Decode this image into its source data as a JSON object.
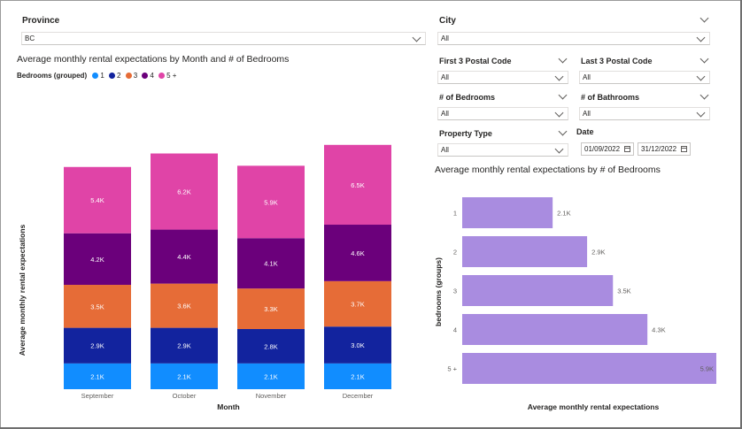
{
  "filters": {
    "province": {
      "label": "Province",
      "value": "BC"
    },
    "city": {
      "label": "City",
      "value": "All"
    },
    "first3": {
      "label": "First 3 Postal Code",
      "value": "All"
    },
    "last3": {
      "label": "Last 3 Postal Code",
      "value": "All"
    },
    "bedrooms": {
      "label": "# of Bedrooms",
      "value": "All"
    },
    "bathrooms": {
      "label": "# of Bathrooms",
      "value": "All"
    },
    "ptype": {
      "label": "Property Type",
      "value": "All"
    },
    "date": {
      "label": "Date",
      "start": "01/09/2022",
      "end": "31/12/2022"
    }
  },
  "colors": {
    "b1": "#118DFF",
    "b2": "#12239E",
    "b3": "#E66C37",
    "b4": "#6B007B",
    "b5": "#E044A7",
    "hbar": "#A98CE0"
  },
  "legend": {
    "title": "Bedrooms (grouped)",
    "items": [
      {
        "label": "1",
        "color": "#118DFF"
      },
      {
        "label": "2",
        "color": "#12239E"
      },
      {
        "label": "3",
        "color": "#E66C37"
      },
      {
        "label": "4",
        "color": "#6B007B"
      },
      {
        "label": "5 +",
        "color": "#E044A7"
      }
    ]
  },
  "chart_data": [
    {
      "type": "bar",
      "stacked": true,
      "title": "Average monthly rental expectations by Month and # of Bedrooms",
      "xlabel": "Month",
      "ylabel": "Average monthly rental expectations",
      "categories": [
        "September",
        "October",
        "November",
        "December"
      ],
      "ylim": [
        0,
        22000
      ],
      "series": [
        {
          "name": "1",
          "values": [
            2100,
            2100,
            2100,
            2100
          ],
          "labels": [
            "2.1K",
            "2.1K",
            "2.1K",
            "2.1K"
          ]
        },
        {
          "name": "2",
          "values": [
            2900,
            2900,
            2800,
            3000
          ],
          "labels": [
            "2.9K",
            "2.9K",
            "2.8K",
            "3.0K"
          ]
        },
        {
          "name": "3",
          "values": [
            3500,
            3600,
            3300,
            3700
          ],
          "labels": [
            "3.5K",
            "3.6K",
            "3.3K",
            "3.7K"
          ]
        },
        {
          "name": "4",
          "values": [
            4200,
            4400,
            4100,
            4600
          ],
          "labels": [
            "4.2K",
            "4.4K",
            "4.1K",
            "4.6K"
          ]
        },
        {
          "name": "5 +",
          "values": [
            5400,
            6200,
            5900,
            6500
          ],
          "labels": [
            "5.4K",
            "6.2K",
            "5.9K",
            "6.5K"
          ]
        }
      ]
    },
    {
      "type": "bar",
      "orientation": "horizontal",
      "title": "Average monthly rental expectations by # of Bedrooms",
      "xlabel": "Average monthly rental expectations",
      "ylabel": "bedrooms (groups)",
      "categories": [
        "1",
        "2",
        "3",
        "4",
        "5 +"
      ],
      "values": [
        2100,
        2900,
        3500,
        4300,
        5900
      ],
      "labels": [
        "2.1K",
        "2.9K",
        "3.5K",
        "4.3K",
        "5.9K"
      ],
      "xlim": [
        0,
        5900
      ]
    }
  ]
}
